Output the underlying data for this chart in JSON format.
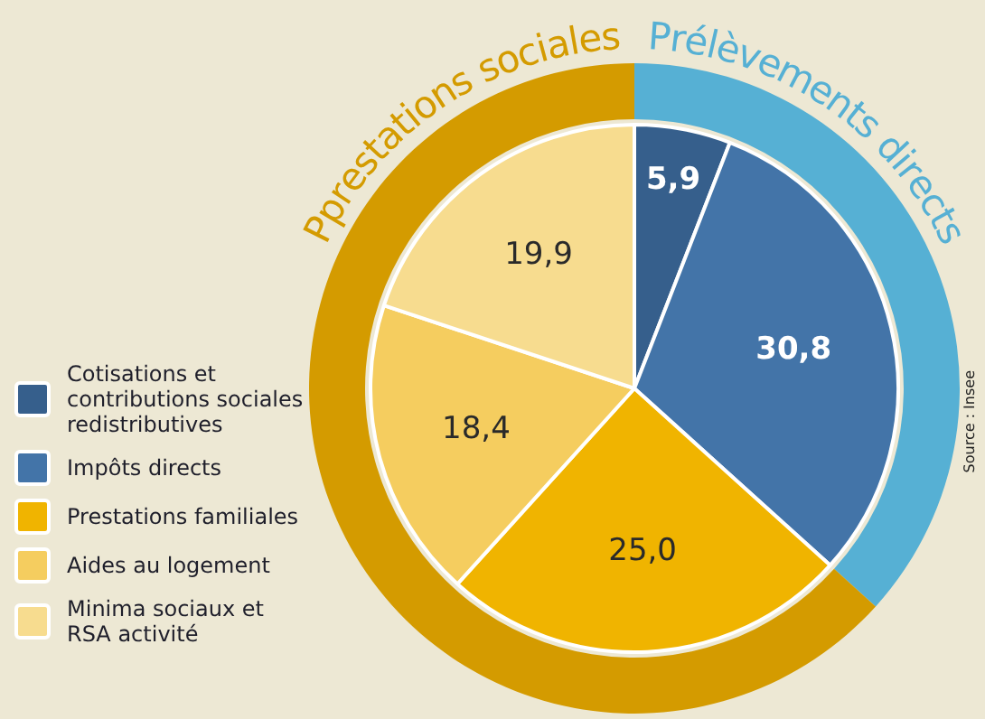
{
  "chart_data": [
    {
      "type": "pie",
      "categories": [
        "Cotisations et contributions sociales redistributives",
        "Impôts directs",
        "Prestations familiales",
        "Aides au logement",
        "Minima sociaux et RSA activité"
      ],
      "values": [
        5.9,
        30.8,
        25.0,
        18.4,
        19.9
      ],
      "colors": [
        "#365f8c",
        "#4374a8",
        "#f0b400",
        "#f5cd5f",
        "#f7dc8f"
      ],
      "value_labels": [
        "5,9",
        "30,8",
        "25,0",
        "18,4",
        "19,9"
      ],
      "legend": "left",
      "annotations": [
        "Source : Insee"
      ]
    },
    {
      "type": "donut",
      "categories": [
        "Prélèvements directs",
        "Pprestations sociales"
      ],
      "values": [
        36.7,
        63.3
      ],
      "colors": [
        "#56b0d4",
        "#d49b00"
      ]
    }
  ]
}
